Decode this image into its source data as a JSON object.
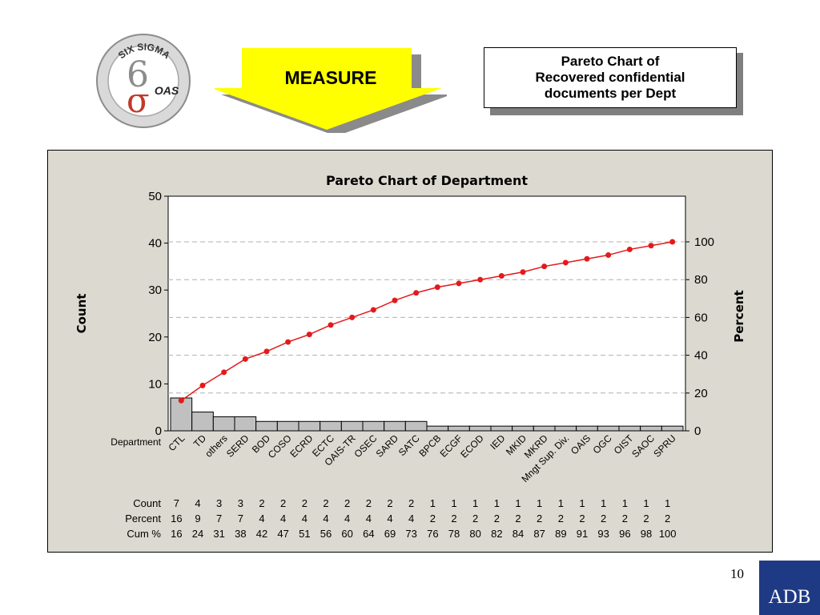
{
  "logo": {
    "top_text": "SIX SIGMA",
    "main_text": "OAS"
  },
  "header": {
    "measure_label": "MEASURE",
    "title_lines": [
      "Pareto Chart of",
      "Recovered confidential",
      "documents per Dept"
    ]
  },
  "footer": {
    "page_number": "10",
    "brand": "ADB"
  },
  "colors": {
    "bars": "#c0c0c0",
    "cumulative_line": "#e31a1c",
    "arrow": "#ffff00",
    "brand": "#1f3a85",
    "plot_bg": "#ffffff",
    "frame_bg": "#dcdad0"
  },
  "chart_data": {
    "type": "bar",
    "title": "Pareto Chart of Department",
    "xlabel": "Department",
    "ylabel": "Count",
    "y2label": "Percent",
    "ylim": [
      0,
      50
    ],
    "y2lim": [
      0,
      100
    ],
    "yticks": [
      0,
      10,
      20,
      30,
      40,
      50
    ],
    "y2ticks": [
      0,
      20,
      40,
      60,
      80,
      100
    ],
    "grid": true,
    "categories": [
      "CTL",
      "TD",
      "others",
      "SERD",
      "BOD",
      "COSO",
      "ECRD",
      "ECTC",
      "OAIS-TR",
      "OSEC",
      "SARD",
      "SATC",
      "BPCB",
      "ECGF",
      "ECOD",
      "IED",
      "MKID",
      "MKRD",
      "Mngt Sup. Div.",
      "OAIS",
      "OGC",
      "OIST",
      "SAOC",
      "SPRU"
    ],
    "series": [
      {
        "values": [
          7,
          4,
          3,
          3,
          2,
          2,
          2,
          2,
          2,
          2,
          2,
          2,
          1,
          1,
          1,
          1,
          1,
          1,
          1,
          1,
          1,
          1,
          1,
          1
        ]
      },
      {
        "values": [
          16,
          24,
          31,
          38,
          42,
          47,
          51,
          56,
          60,
          64,
          69,
          73,
          76,
          78,
          80,
          82,
          84,
          87,
          89,
          91,
          93,
          96,
          98,
          100
        ]
      }
    ],
    "table": {
      "row_labels": [
        "Count",
        "Percent",
        "Cum %"
      ],
      "count": [
        "7",
        "4",
        "3",
        "3",
        "2",
        "2",
        "2",
        "2",
        "2",
        "2",
        "2",
        "2",
        "1",
        "1",
        "1",
        "1",
        "1",
        "1",
        "1",
        "1",
        "1",
        "1",
        "1",
        "1"
      ],
      "percent": [
        "16",
        "9",
        "7",
        "7",
        "4",
        "4",
        "4",
        "4",
        "4",
        "4",
        "4",
        "4",
        "2",
        "2",
        "2",
        "2",
        "2",
        "2",
        "2",
        "2",
        "2",
        "2",
        "2",
        "2"
      ],
      "cum": [
        "16",
        "24",
        "31",
        "38",
        "42",
        "47",
        "51",
        "56",
        "60",
        "64",
        "69",
        "73",
        "76",
        "78",
        "80",
        "82",
        "84",
        "87",
        "89",
        "91",
        "93",
        "96",
        "98",
        "100"
      ]
    }
  }
}
